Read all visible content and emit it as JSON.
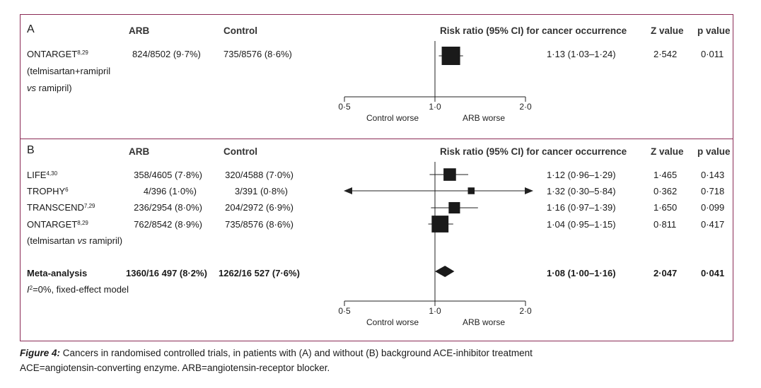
{
  "figure": {
    "caption_lead": "Figure 4:",
    "caption_text": " Cancers in randomised controlled trials, in patients with (A) and without (B) background ACE-inhibitor treatment",
    "footnote": "ACE=angiotensin-converting enzyme. ARB=angiotensin-receptor blocker."
  },
  "headers": {
    "arb": "ARB",
    "control": "Control",
    "rr": "Risk ratio (95% CI) for cancer occurrence",
    "z": "Z value",
    "p": "p value"
  },
  "panel_a": {
    "label": "A",
    "study": {
      "name": "ONTARGET",
      "refs": "8,29",
      "line2": "(telmisartan+ramipril",
      "line3_italic": "vs",
      "line3_rest": " ramipril)"
    },
    "arb": "824/8502 (9·7%)",
    "control": "735/8576 (8·6%)",
    "rr_text": "1·13 (1·03–1·24)",
    "z": "2·542",
    "p": "0·011",
    "axis": {
      "ticks": [
        "0·5",
        "1·0",
        "2·0"
      ],
      "left_label": "Control worse",
      "right_label": "ARB worse"
    }
  },
  "panel_b": {
    "label": "B",
    "studies": [
      {
        "name": "LIFE",
        "refs": "4,30",
        "arb": "358/4605 (7·8%)",
        "control": "320/4588 (7·0%)",
        "rr_text": "1·12 (0·96–1·29)",
        "z": "1·465",
        "p": "0·143"
      },
      {
        "name": "TROPHY",
        "refs": "6",
        "arb": "4/396 (1·0%)",
        "control": "3/391 (0·8%)",
        "rr_text": "1·32 (0·30–5·84)",
        "z": "0·362",
        "p": "0·718"
      },
      {
        "name": "TRANSCEND",
        "refs": "7,29",
        "arb": "236/2954 (8·0%)",
        "control": "204/2972 (6·9%)",
        "rr_text": "1·16 (0·97–1·39)",
        "z": "1·650",
        "p": "0·099"
      },
      {
        "name": "ONTARGET",
        "refs": "8,29",
        "arb": "762/8542 (8·9%)",
        "control": "735/8576 (8·6%)",
        "rr_text": "1·04 (0·95–1·15)",
        "z": "0·811",
        "p": "0·417"
      }
    ],
    "ontarget_note_pre": "(telmisartan ",
    "ontarget_note_vs": "vs",
    "ontarget_note_post": " ramipril)",
    "meta": {
      "name": "Meta-analysis",
      "arb": "1360/16 497 (8·2%)",
      "control": "1262/16 527 (7·6%)",
      "rr_text": "1·08 (1·00–1·16)",
      "z": "2·047",
      "p": "0·041",
      "note_i": "I",
      "note_rest": "=0%, fixed-effect model"
    },
    "axis": {
      "ticks": [
        "0·5",
        "1·0",
        "2·0"
      ],
      "left_label": "Control worse",
      "right_label": "ARB worse"
    }
  },
  "chart_data": [
    {
      "type": "forest",
      "panel": "A",
      "scale": "log",
      "xlim": [
        0.5,
        2.0
      ],
      "reference": 1.0,
      "rows": [
        {
          "label": "ONTARGET",
          "rr": 1.13,
          "lo": 1.03,
          "hi": 1.24,
          "weight": 1.0
        }
      ]
    },
    {
      "type": "forest",
      "panel": "B",
      "scale": "log",
      "xlim": [
        0.5,
        2.0
      ],
      "reference": 1.0,
      "rows": [
        {
          "label": "LIFE",
          "rr": 1.12,
          "lo": 0.96,
          "hi": 1.29,
          "weight": 0.62
        },
        {
          "label": "TROPHY",
          "rr": 1.32,
          "lo": 0.3,
          "hi": 5.84,
          "weight": 0.25
        },
        {
          "label": "TRANSCEND",
          "rr": 1.16,
          "lo": 0.97,
          "hi": 1.39,
          "weight": 0.55
        },
        {
          "label": "ONTARGET",
          "rr": 1.04,
          "lo": 0.95,
          "hi": 1.15,
          "weight": 0.9
        }
      ],
      "summary": {
        "label": "Meta-analysis",
        "rr": 1.08,
        "lo": 1.0,
        "hi": 1.16
      }
    }
  ]
}
